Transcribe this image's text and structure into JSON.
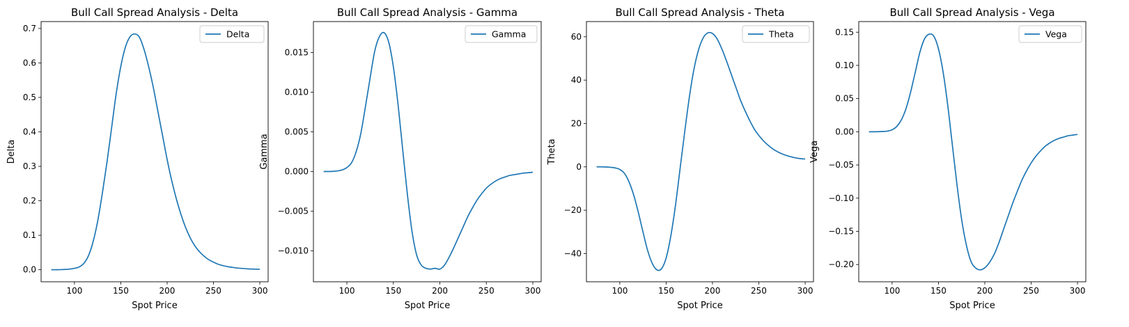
{
  "chart_data": [
    {
      "type": "line",
      "title": "Bull Call Spread Analysis - Delta",
      "xlabel": "Spot Price",
      "ylabel": "Delta",
      "xlim": [
        64,
        309
      ],
      "ylim": [
        -0.035,
        0.72
      ],
      "xticks": [
        100,
        150,
        200,
        250,
        300
      ],
      "yticks": [
        0.0,
        0.1,
        0.2,
        0.3,
        0.4,
        0.5,
        0.6,
        0.7
      ],
      "ytick_labels": [
        "0.0",
        "0.1",
        "0.2",
        "0.3",
        "0.4",
        "0.5",
        "0.6",
        "0.7"
      ],
      "legend_position": "upper right",
      "color": "#1f77b4",
      "series": [
        {
          "name": "Delta",
          "x": [
            75,
            80,
            85,
            90,
            95,
            100,
            105,
            110,
            115,
            120,
            125,
            130,
            135,
            140,
            145,
            150,
            155,
            160,
            165,
            170,
            175,
            180,
            185,
            190,
            195,
            200,
            205,
            210,
            215,
            220,
            225,
            230,
            235,
            240,
            245,
            250,
            255,
            260,
            265,
            270,
            275,
            280,
            285,
            290,
            295,
            300
          ],
          "values": [
            0.0,
            0.0,
            0.0002,
            0.0008,
            0.002,
            0.004,
            0.008,
            0.018,
            0.04,
            0.08,
            0.14,
            0.22,
            0.31,
            0.41,
            0.51,
            0.59,
            0.646,
            0.676,
            0.684,
            0.675,
            0.64,
            0.59,
            0.53,
            0.46,
            0.39,
            0.32,
            0.258,
            0.205,
            0.16,
            0.122,
            0.092,
            0.069,
            0.052,
            0.039,
            0.029,
            0.022,
            0.016,
            0.012,
            0.009,
            0.007,
            0.005,
            0.004,
            0.003,
            0.002,
            0.0017,
            0.0012
          ]
        }
      ]
    },
    {
      "type": "line",
      "title": "Bull Call Spread Analysis - Gamma",
      "xlabel": "Spot Price",
      "ylabel": "Gamma",
      "xlim": [
        64,
        309
      ],
      "ylim": [
        -0.0139,
        0.0189
      ],
      "xticks": [
        100,
        150,
        200,
        250,
        300
      ],
      "yticks": [
        -0.01,
        -0.005,
        0.0,
        0.005,
        0.01,
        0.015
      ],
      "ytick_labels": [
        "−0.010",
        "−0.005",
        "0.000",
        "0.005",
        "0.010",
        "0.015"
      ],
      "legend_position": "upper right",
      "color": "#1f77b4",
      "series": [
        {
          "name": "Gamma",
          "x": [
            75,
            80,
            85,
            90,
            95,
            100,
            105,
            110,
            115,
            120,
            125,
            130,
            135,
            140,
            145,
            150,
            155,
            160,
            165,
            170,
            175,
            180,
            185,
            190,
            195,
            200,
            205,
            210,
            215,
            220,
            225,
            230,
            235,
            240,
            245,
            250,
            255,
            260,
            265,
            270,
            275,
            280,
            285,
            290,
            295,
            300
          ],
          "values": [
            0.0,
            0.0,
            2e-05,
            8e-05,
            0.0002,
            0.0005,
            0.0011,
            0.0025,
            0.0048,
            0.0082,
            0.0118,
            0.0152,
            0.017,
            0.0175,
            0.0163,
            0.0132,
            0.0085,
            0.0028,
            -0.0028,
            -0.0075,
            -0.0105,
            -0.0118,
            -0.0122,
            -0.0123,
            -0.0122,
            -0.0123,
            -0.0118,
            -0.0108,
            -0.0096,
            -0.0083,
            -0.007,
            -0.0057,
            -0.0046,
            -0.0036,
            -0.0028,
            -0.0021,
            -0.0016,
            -0.0012,
            -0.0009,
            -0.0007,
            -0.0005,
            -0.0004,
            -0.0003,
            -0.0002,
            -0.00015,
            -0.0001
          ]
        }
      ]
    },
    {
      "type": "line",
      "title": "Bull Call Spread Analysis - Theta",
      "xlabel": "Spot Price",
      "ylabel": "Theta",
      "xlim": [
        64,
        309
      ],
      "ylim": [
        -53,
        67
      ],
      "xticks": [
        100,
        150,
        200,
        250,
        300
      ],
      "yticks": [
        -40,
        -20,
        0,
        20,
        40,
        60
      ],
      "ytick_labels": [
        "−40",
        "−20",
        "0",
        "20",
        "40",
        "60"
      ],
      "legend_position": "upper right",
      "color": "#1f77b4",
      "series": [
        {
          "name": "Theta",
          "x": [
            75,
            80,
            85,
            90,
            95,
            100,
            105,
            110,
            115,
            120,
            125,
            130,
            135,
            140,
            145,
            150,
            155,
            160,
            165,
            170,
            175,
            180,
            185,
            190,
            195,
            200,
            205,
            210,
            215,
            220,
            225,
            230,
            235,
            240,
            245,
            250,
            255,
            260,
            265,
            270,
            275,
            280,
            285,
            290,
            295,
            300
          ],
          "values": [
            0.0,
            0.0,
            -0.05,
            -0.2,
            -0.5,
            -1.2,
            -3,
            -7,
            -13,
            -21,
            -30,
            -38.5,
            -44.5,
            -47.5,
            -47,
            -42,
            -32,
            -18,
            -1,
            16,
            32,
            45,
            54,
            59.5,
            61.8,
            61.5,
            59,
            54.5,
            49,
            43,
            37,
            31,
            26,
            21.5,
            17.5,
            14.5,
            12,
            10,
            8.3,
            7,
            6,
            5.2,
            4.6,
            4.1,
            3.8,
            3.6
          ]
        }
      ]
    },
    {
      "type": "line",
      "title": "Bull Call Spread Analysis - Vega",
      "xlabel": "Spot Price",
      "ylabel": "Vega",
      "xlim": [
        64,
        309
      ],
      "ylim": [
        -0.226,
        0.166
      ],
      "xticks": [
        100,
        150,
        200,
        250,
        300
      ],
      "yticks": [
        -0.2,
        -0.15,
        -0.1,
        -0.05,
        0.0,
        0.05,
        0.1,
        0.15
      ],
      "ytick_labels": [
        "−0.20",
        "−0.15",
        "−0.10",
        "−0.05",
        "0.00",
        "0.05",
        "0.10",
        "0.15"
      ],
      "legend_position": "upper right",
      "color": "#1f77b4",
      "series": [
        {
          "name": "Vega",
          "x": [
            75,
            80,
            85,
            90,
            95,
            100,
            105,
            110,
            115,
            120,
            125,
            130,
            135,
            140,
            145,
            150,
            155,
            160,
            165,
            170,
            175,
            180,
            185,
            190,
            195,
            200,
            205,
            210,
            215,
            220,
            225,
            230,
            235,
            240,
            245,
            250,
            255,
            260,
            265,
            270,
            275,
            280,
            285,
            290,
            295,
            300
          ],
          "values": [
            0.0,
            0.0,
            0.0001,
            0.0004,
            0.001,
            0.003,
            0.008,
            0.018,
            0.035,
            0.06,
            0.09,
            0.12,
            0.14,
            0.147,
            0.144,
            0.125,
            0.09,
            0.04,
            -0.02,
            -0.08,
            -0.132,
            -0.17,
            -0.195,
            -0.205,
            -0.208,
            -0.205,
            -0.197,
            -0.185,
            -0.168,
            -0.148,
            -0.128,
            -0.108,
            -0.09,
            -0.073,
            -0.059,
            -0.047,
            -0.037,
            -0.029,
            -0.022,
            -0.017,
            -0.013,
            -0.01,
            -0.008,
            -0.006,
            -0.005,
            -0.004
          ]
        }
      ]
    }
  ]
}
